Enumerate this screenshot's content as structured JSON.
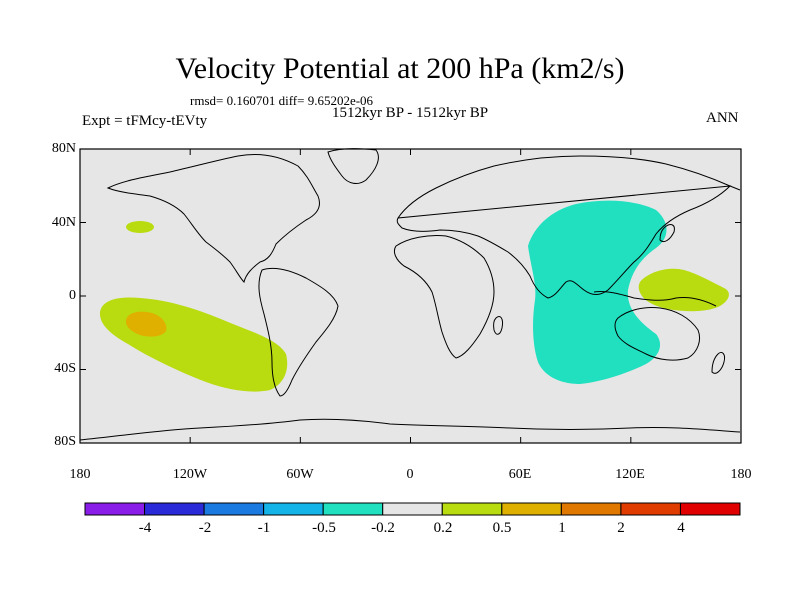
{
  "title": "Velocity Potential at 200 hPa (km2/s)",
  "stats": "rmsd= 0.160701  diff= 9.65202e-06",
  "experiment": "Expt = tFMcy-tEVty",
  "period": "1512kyr BP - 1512kyr BP",
  "season": "ANN",
  "lat_labels": [
    "80N",
    "40N",
    "0",
    "40S",
    "80S"
  ],
  "lon_labels": [
    "180",
    "120W",
    "60W",
    "0",
    "60E",
    "120E",
    "180"
  ],
  "colorbar": {
    "colors": [
      "#8a1ee8",
      "#2a2ad8",
      "#1a7ae0",
      "#14b4e8",
      "#20e0c0",
      "#e6e6e6",
      "#b8dc10",
      "#e0b000",
      "#e07800",
      "#e03c00",
      "#e00000"
    ],
    "labels": [
      "-4",
      "-2",
      "-1",
      "-0.5",
      "-0.2",
      "0.2",
      "0.5",
      "1",
      "2",
      "4"
    ]
  },
  "map": {
    "background_color": "#e6e6e6",
    "anomaly_regions": [
      {
        "level": "0.2 to 0.5",
        "color": "#b8dc10",
        "where": "tropical/subtropical southeast Pacific"
      },
      {
        "level": "0.5 to 1",
        "color": "#e0b000",
        "where": "central South Pacific near 20S 150W"
      },
      {
        "level": "0.2 to 0.5",
        "color": "#b8dc10",
        "where": "small patch North Pacific near 40N 150W"
      },
      {
        "level": "-0.5 to -0.2",
        "color": "#20e0c0",
        "where": "Indian Ocean to East Asia"
      },
      {
        "level": "0.2 to 0.5",
        "color": "#b8dc10",
        "where": "western Pacific near the Philippines and New Guinea"
      }
    ]
  }
}
